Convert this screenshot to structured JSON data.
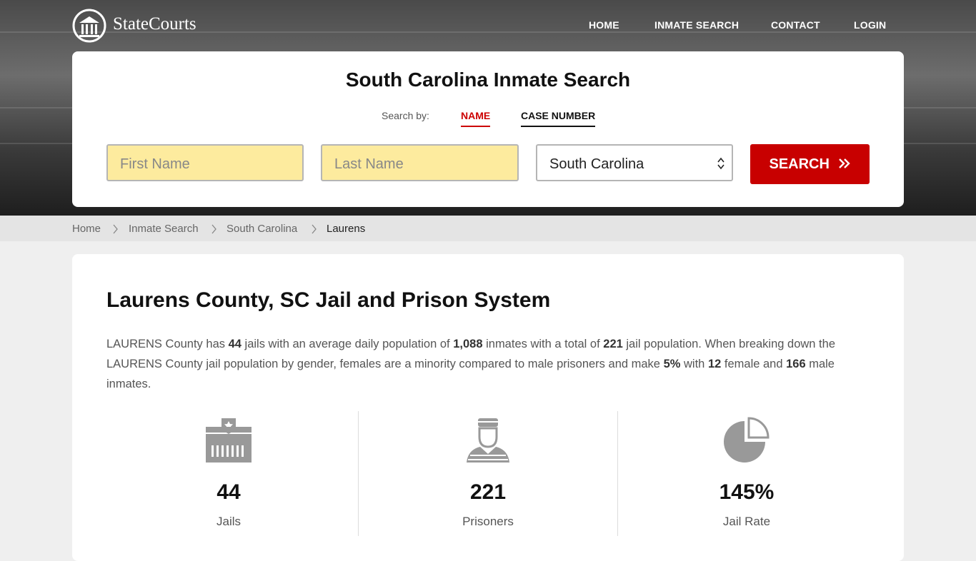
{
  "header": {
    "logo": "StateCourts",
    "nav": [
      "HOME",
      "INMATE SEARCH",
      "CONTACT",
      "LOGIN"
    ]
  },
  "search": {
    "title": "South Carolina Inmate Search",
    "search_by": "Search by:",
    "tabs": [
      "NAME",
      "CASE NUMBER"
    ],
    "first_name": "First Name",
    "last_name": "Last Name",
    "state": "South Carolina",
    "button": "SEARCH"
  },
  "breadcrumb": [
    "Home",
    "Inmate Search",
    "South Carolina",
    "Laurens"
  ],
  "content": {
    "heading": "Laurens County, SC Jail and Prison System",
    "paragraph": [
      "LAURENS County has ",
      "44",
      " jails with an average daily population of ",
      "1,088",
      " inmates with a total of ",
      "221",
      " jail population. When breaking down the LAURENS County jail population by gender, females are a minority compared to male prisoners and make ",
      "5%",
      " with ",
      "12",
      " female and ",
      "166",
      " male inmates."
    ],
    "stats": [
      {
        "value": "44",
        "label": "Jails"
      },
      {
        "value": "221",
        "label": "Prisoners"
      },
      {
        "value": "145%",
        "label": "Jail Rate"
      }
    ]
  }
}
